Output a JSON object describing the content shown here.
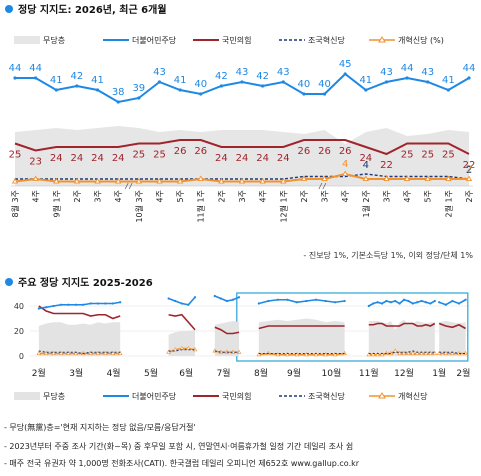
{
  "chart_data": [
    {
      "type": "line",
      "title": "정당 지지도: 2026년, 최근 6개월",
      "legend": [
        "무당층",
        "더불어민주당",
        "국민의힘",
        "조국혁신당",
        "개혁신당 (%)"
      ],
      "legend_position": "top",
      "x": [
        "8월 3주",
        "4주",
        "9월 1주",
        "2주",
        "3주",
        "4주",
        "10월 3주",
        "4주",
        "5주",
        "11월 1주",
        "2주",
        "3주",
        "4주",
        "12월 1주",
        "2주",
        "3주",
        "4주",
        "1월 2주",
        "3주",
        "4주",
        "5주",
        "2월 1주",
        "2주"
      ],
      "x_rows": [
        [
          "8월",
          "3주"
        ],
        [
          "",
          "4주"
        ],
        [
          "9월",
          "1주"
        ],
        [
          "",
          "2주"
        ],
        [
          "",
          "3주"
        ],
        [
          "",
          "4주"
        ],
        [
          "10월",
          "3주"
        ],
        [
          "",
          "4주"
        ],
        [
          "",
          "5주"
        ],
        [
          "11월",
          "1주"
        ],
        [
          "",
          "2주"
        ],
        [
          "",
          "3주"
        ],
        [
          "",
          "4주"
        ],
        [
          "12월",
          "1주"
        ],
        [
          "",
          "2주"
        ],
        [
          "",
          "3주"
        ],
        [
          "",
          "4주"
        ],
        [
          "1월",
          "2주"
        ],
        [
          "",
          "3주"
        ],
        [
          "",
          "4주"
        ],
        [
          "",
          "5주"
        ],
        [
          "2월",
          "1주"
        ],
        [
          "",
          "2주"
        ]
      ],
      "series": [
        {
          "name": "더불어민주당",
          "color": "#1e88e5",
          "values": [
            44,
            44,
            41,
            42,
            41,
            38,
            39,
            43,
            41,
            40,
            42,
            43,
            42,
            43,
            40,
            40,
            45,
            41,
            43,
            44,
            43,
            41,
            44
          ]
        },
        {
          "name": "국민의힘",
          "color": "#a0242c",
          "values": [
            25,
            23,
            24,
            24,
            24,
            24,
            25,
            25,
            26,
            26,
            24,
            24,
            24,
            24,
            26,
            26,
            26,
            24,
            22,
            25,
            25,
            25,
            22
          ]
        },
        {
          "name": "조국혁신당",
          "color": "#1a3a7a",
          "values": [
            2,
            2,
            2,
            2,
            2,
            2,
            2,
            2,
            2,
            2,
            2,
            2,
            2,
            2,
            3,
            3,
            3,
            4,
            3,
            3,
            3,
            3,
            2
          ]
        },
        {
          "name": "개혁신당",
          "color": "#f2922e",
          "values": [
            1,
            2,
            1,
            1,
            1,
            1,
            1,
            1,
            1,
            2,
            1,
            1,
            1,
            1,
            2,
            2,
            4,
            2,
            2,
            2,
            2,
            2,
            2
          ]
        },
        {
          "name": "무당층",
          "color": "#e6e6e6",
          "values": [
            27,
            28,
            29,
            28,
            29,
            30,
            29,
            27,
            28,
            27,
            28,
            28,
            28,
            27,
            26,
            28,
            21,
            27,
            29,
            25,
            26,
            28,
            27
          ]
        }
      ],
      "labels_shown": {
        "더불어민주당": [
          "44",
          "44",
          "41",
          "42",
          "41",
          "38",
          "39",
          "43",
          "41",
          "40",
          "42",
          "43",
          "42",
          "43",
          "40",
          "40",
          "45",
          "41",
          "43",
          "44",
          "43",
          "41",
          "44"
        ],
        "국민의힘": [
          "25",
          "23",
          "24",
          "24",
          "24",
          "24",
          "25",
          "25",
          "26",
          "26",
          "24",
          "24",
          "24",
          "24",
          "26",
          "26",
          "26",
          "24",
          "22",
          "25",
          "25",
          "25",
          "22"
        ],
        "조국혁신당": {
          "17": "4",
          "22": "2"
        },
        "개혁신당": {
          "16": "4",
          "22": "2"
        }
      },
      "footnote": "- 진보당 1%, 기본소득당 1%, 이외 정당/단체 1%"
    },
    {
      "type": "line",
      "title": "주요 정당 지지도 2025-2026",
      "yticks": [
        0,
        20,
        40
      ],
      "ylim": [
        0,
        50
      ],
      "xticks": [
        "2월",
        "3월",
        "4월",
        "5월",
        "6월",
        "7월",
        "8월",
        "9월",
        "10월",
        "11월",
        "12월",
        "1월",
        "2월"
      ],
      "legend": [
        "무당층",
        "더불어민주당",
        "국민의힘",
        "조국혁신당",
        "개혁신당"
      ],
      "legend_position": "bottom",
      "series": [
        {
          "name": "더불어민주당",
          "color": "#1e88e5",
          "segments": [
            [
              38,
              39,
              40,
              41,
              41,
              41,
              41,
              42,
              42,
              42,
              42,
              43
            ],
            [
              46,
              44,
              42,
              41,
              47
            ],
            [
              48,
              46,
              44,
              45,
              47
            ],
            [
              42,
              44,
              45,
              45,
              43,
              44,
              45,
              44,
              43,
              44
            ],
            [
              40,
              42,
              43,
              42,
              44,
              43,
              44,
              42,
              45,
              44,
              42,
              43,
              44,
              43,
              42,
              44
            ],
            [
              43,
              41,
              44,
              42,
              45
            ]
          ]
        },
        {
          "name": "국민의힘",
          "color": "#a0242c",
          "segments": [
            [
              40,
              36,
              34,
              34,
              34,
              34,
              34,
              32,
              33,
              33,
              30,
              32
            ],
            [
              33,
              32,
              33,
              27,
              21
            ],
            [
              23,
              21,
              18,
              18,
              19
            ],
            [
              22,
              24,
              24,
              24,
              24,
              24,
              24,
              24,
              24,
              24
            ],
            [
              25,
              25,
              26,
              26,
              24,
              24,
              24,
              24,
              26,
              26,
              26,
              24,
              24,
              25,
              24,
              26
            ],
            [
              26,
              24,
              23,
              25,
              22
            ]
          ]
        },
        {
          "name": "무당층",
          "color": "#e3e3e3",
          "segments": [
            [
              24,
              26,
              27,
              27,
              25,
              25,
              26,
              25,
              27,
              26,
              27,
              27
            ],
            [
              17,
              19,
              20,
              20,
              21
            ],
            [
              25,
              26,
              27,
              28,
              27
            ],
            [
              27,
              28,
              29,
              28,
              29,
              30,
              29,
              27,
              28,
              27
            ],
            [
              28,
              28,
              28,
              27,
              26,
              28,
              21,
              27,
              29,
              25,
              26,
              28,
              27,
              26,
              27,
              27
            ],
            [
              27,
              28,
              27,
              26,
              27
            ]
          ]
        },
        {
          "name": "조국혁신당",
          "color": "#1a3a7a",
          "segments": [
            [
              4,
              3,
              3,
              3,
              3,
              3,
              2,
              3,
              3,
              3,
              3,
              3
            ],
            [
              4,
              4,
              5,
              5,
              5
            ],
            [
              4,
              3,
              3,
              3,
              3
            ],
            [
              2,
              2,
              2,
              2,
              2,
              2,
              2,
              2,
              2,
              2
            ],
            [
              2,
              2,
              2,
              2,
              2,
              2,
              3,
              3,
              3,
              3,
              4,
              3,
              3,
              3,
              3,
              3
            ],
            [
              3,
              3,
              3,
              2,
              2
            ]
          ]
        },
        {
          "name": "개혁신당",
          "color": "#f2922e",
          "segments": [
            [
              2,
              2,
              2,
              2,
              2,
              2,
              2,
              2,
              2,
              2,
              2,
              2
            ],
            [
              3,
              5,
              6,
              6,
              5
            ],
            [
              4,
              3,
              3,
              3,
              3
            ],
            [
              1,
              2,
              1,
              1,
              1,
              1,
              1,
              1,
              1,
              2
            ],
            [
              1,
              1,
              1,
              1,
              2,
              2,
              4,
              2,
              2,
              2,
              2,
              2,
              2,
              2,
              2,
              2
            ],
            [
              2,
              2,
              2,
              2,
              2
            ]
          ]
        }
      ],
      "highlight_range": [
        "8월",
        "2월"
      ]
    }
  ],
  "notes": [
    "- 무당(無黨)층='현재 지지하는 정당 없음/모름/응답거절'",
    "- 2023년부터 주중 조사 기간(화~목) 중 후무일 포함 시, 연말연시·여름휴가철 일정 기간 데일리 조사 쉼",
    "- 매주 전국 유권자 약 1,000명 전화조사(CATI). 한국갤럽 데일리 오피니언 제652호 www.gallup.co.kr"
  ]
}
